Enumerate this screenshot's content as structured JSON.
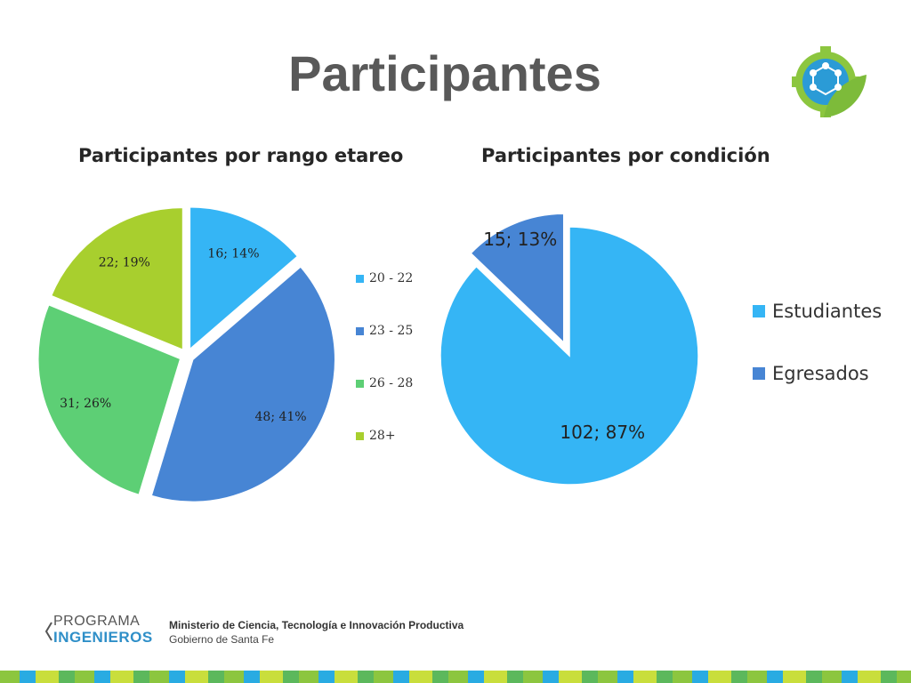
{
  "slide": {
    "title": "Participantes"
  },
  "footer": {
    "program_line1": "PROGRAMA",
    "program_line2": "INGENIEROS",
    "ministry": "Ministerio de Ciencia, Tecnología e Innovación Productiva",
    "government": "Gobierno de Santa Fe"
  },
  "chart_data": [
    {
      "type": "pie",
      "title": "Participantes por rango etareo",
      "categories": [
        "20 - 22",
        "23 - 25",
        "26 - 28",
        "28+"
      ],
      "values": [
        16,
        48,
        31,
        22
      ],
      "percents": [
        14,
        41,
        26,
        19
      ],
      "data_labels": [
        "16; 14%",
        "48; 41%",
        "31; 26%",
        "22; 19%"
      ],
      "colors": [
        "#35b5f5",
        "#4785d4",
        "#5dcf75",
        "#a8cf2e"
      ],
      "exploded": true,
      "legend": "right"
    },
    {
      "type": "pie",
      "title": "Participantes por condición",
      "categories": [
        "Estudiantes",
        "Egresados"
      ],
      "values": [
        102,
        15
      ],
      "percents": [
        87,
        13
      ],
      "data_labels": [
        "102; 87%",
        "15; 13%"
      ],
      "colors": [
        "#35b5f5",
        "#4785d4"
      ],
      "exploded_slice": "Egresados",
      "legend": "right"
    }
  ]
}
